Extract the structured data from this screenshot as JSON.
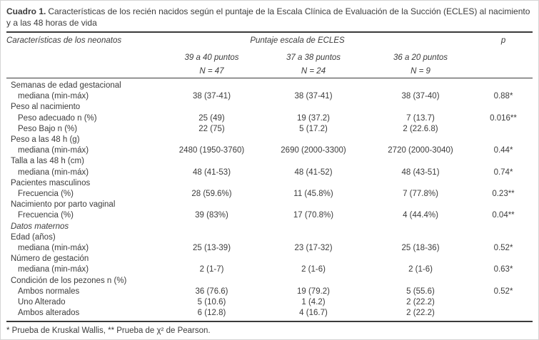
{
  "page": {
    "background": "#ffffff",
    "frame_border_color": "#d4d4d4",
    "text_color": "#3c3c3c",
    "rule_color": "#3a3a3a"
  },
  "title": {
    "label": "Cuadro 1.",
    "line1": "Características de los recién nacidos según el puntaje de la Escala Clínica de Evaluación de la Succión (ECLES) al nacimiento",
    "line2": "y a las 48 horas de vida"
  },
  "table": {
    "header": {
      "characteristics_label": "Características de los neonatos",
      "group_label": "Puntaje escala de ECLES",
      "p_label": "p",
      "score_columns": [
        {
          "range": "39 a 40 puntos",
          "n": "N = 47"
        },
        {
          "range": "37 a 38 puntos",
          "n": "N = 24"
        },
        {
          "range": "36 a 20 puntos",
          "n": "N = 9"
        }
      ]
    },
    "rows": [
      {
        "label": "Semanas de edad gestacional",
        "type": "group",
        "v1": "",
        "v2": "",
        "v3": "",
        "p": ""
      },
      {
        "label": "mediana (min-máx)",
        "type": "sub",
        "v1": "38 (37-41)",
        "v2": "38 (37-41)",
        "v3": "38 (37-40)",
        "p": "0.88*"
      },
      {
        "label": "Peso al nacimiento",
        "type": "group",
        "v1": "",
        "v2": "",
        "v3": "",
        "p": ""
      },
      {
        "label": "Peso adecuado n (%)",
        "type": "sub",
        "v1": "25 (49)",
        "v2": "19 (37.2)",
        "v3": "7 (13.7)",
        "p": "0.016**"
      },
      {
        "label": "Peso Bajo n (%)",
        "type": "sub",
        "v1": "22 (75)",
        "v2": "5 (17.2)",
        "v3": "2 (22.6.8)",
        "p": ""
      },
      {
        "label": "Peso a las 48 h (g)",
        "type": "group",
        "v1": "",
        "v2": "",
        "v3": "",
        "p": ""
      },
      {
        "label": "mediana (min-máx)",
        "type": "sub",
        "v1": "2480 (1950-3760)",
        "v2": "2690 (2000-3300)",
        "v3": "2720 (2000-3040)",
        "p": "0.44*"
      },
      {
        "label": "Talla a las 48 h (cm)",
        "type": "group",
        "v1": "",
        "v2": "",
        "v3": "",
        "p": ""
      },
      {
        "label": "mediana (min-máx)",
        "type": "sub",
        "v1": "48 (41-53)",
        "v2": "48 (41-52)",
        "v3": "48 (43-51)",
        "p": "0.74*"
      },
      {
        "label": "Pacientes masculinos",
        "type": "group",
        "v1": "",
        "v2": "",
        "v3": "",
        "p": ""
      },
      {
        "label": "Frecuencia (%)",
        "type": "sub",
        "v1": "28 (59.6%)",
        "v2": "11 (45.8%)",
        "v3": "7 (77.8%)",
        "p": "0.23**"
      },
      {
        "label": "Nacimiento por parto vaginal",
        "type": "group",
        "v1": "",
        "v2": "",
        "v3": "",
        "p": ""
      },
      {
        "label": "Frecuencia (%)",
        "type": "sub",
        "v1": "39 (83%)",
        "v2": "17 (70.8%)",
        "v3": "4 (44.4%)",
        "p": "0.04**"
      },
      {
        "label": "Datos maternos",
        "type": "group-italic",
        "v1": "",
        "v2": "",
        "v3": "",
        "p": ""
      },
      {
        "label": "Edad (años)",
        "type": "group",
        "v1": "",
        "v2": "",
        "v3": "",
        "p": ""
      },
      {
        "label": "mediana (min-máx)",
        "type": "sub",
        "v1": "25 (13-39)",
        "v2": "23 (17-32)",
        "v3": "25 (18-36)",
        "p": "0.52*"
      },
      {
        "label": "Número de gestación",
        "type": "group",
        "v1": "",
        "v2": "",
        "v3": "",
        "p": ""
      },
      {
        "label": "mediana (min-máx)",
        "type": "sub",
        "v1": "2 (1-7)",
        "v2": "2 (1-6)",
        "v3": "2 (1-6)",
        "p": "0.63*"
      },
      {
        "label": "Condición de los pezones n (%)",
        "type": "group",
        "v1": "",
        "v2": "",
        "v3": "",
        "p": ""
      },
      {
        "label": "Ambos normales",
        "type": "sub",
        "v1": "36 (76.6)",
        "v2": "19 (79.2)",
        "v3": "5 (55.6)",
        "p": "0.52*"
      },
      {
        "label": "Uno Alterado",
        "type": "sub",
        "v1": "5 (10.6)",
        "v2": "1 (4.2)",
        "v3": "2 (22.2)",
        "p": ""
      },
      {
        "label": "Ambos alterados",
        "type": "sub",
        "v1": "6 (12.8)",
        "v2": "4 (16.7)",
        "v3": "2 (22.2)",
        "p": ""
      }
    ]
  },
  "footnote": "* Prueba de Kruskal Wallis, ** Prueba de χ² de Pearson."
}
